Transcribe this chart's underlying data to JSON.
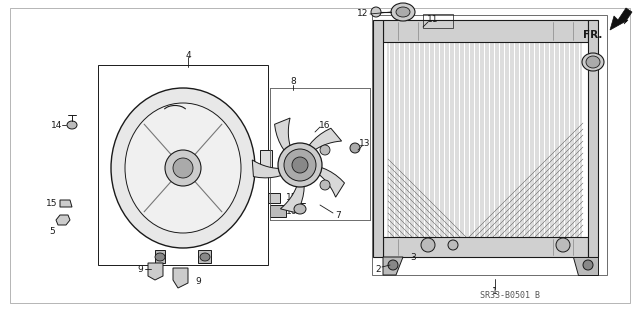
{
  "bg_color": "#ffffff",
  "line_color": "#1a1a1a",
  "gray1": "#888888",
  "gray2": "#aaaaaa",
  "gray3": "#cccccc",
  "diagram_code": "SR33-B0501 B",
  "figsize": [
    6.4,
    3.19
  ],
  "dpi": 100
}
